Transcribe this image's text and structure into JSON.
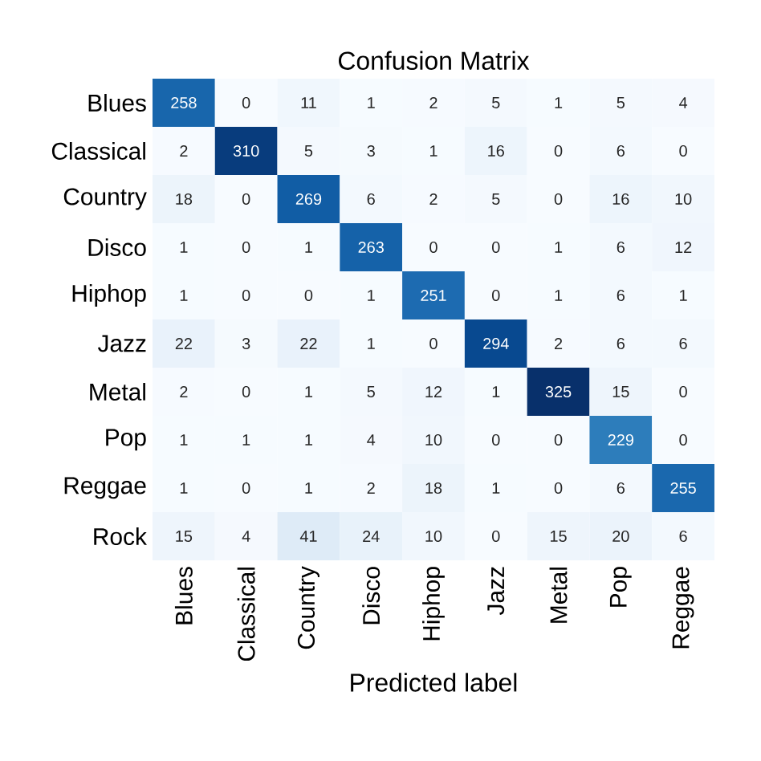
{
  "chart_data": {
    "type": "heatmap",
    "title": "Confusion Matrix",
    "xlabel": "Predicted label",
    "categories": [
      "Blues",
      "Classical",
      "Country",
      "Disco",
      "Hiphop",
      "Jazz",
      "Metal",
      "Pop",
      "Reggae"
    ],
    "y_categories": [
      "Blues",
      "Classical",
      "Country",
      "Disco",
      "Hiphop",
      "Jazz",
      "Metal",
      "Pop",
      "Reggae",
      "Rock"
    ],
    "cells": [
      [
        258,
        0,
        11,
        1,
        2,
        5,
        1,
        5,
        4
      ],
      [
        2,
        310,
        5,
        3,
        1,
        16,
        0,
        6,
        0
      ],
      [
        18,
        0,
        269,
        6,
        2,
        5,
        0,
        16,
        10
      ],
      [
        1,
        0,
        1,
        263,
        0,
        0,
        1,
        6,
        12
      ],
      [
        1,
        0,
        0,
        1,
        251,
        0,
        1,
        6,
        1
      ],
      [
        22,
        3,
        22,
        1,
        0,
        294,
        2,
        6,
        6
      ],
      [
        2,
        0,
        1,
        5,
        12,
        1,
        325,
        15,
        0
      ],
      [
        1,
        1,
        1,
        4,
        10,
        0,
        0,
        229,
        0
      ],
      [
        1,
        0,
        1,
        2,
        18,
        1,
        0,
        6,
        255
      ],
      [
        15,
        4,
        41,
        24,
        10,
        0,
        15,
        20,
        6
      ]
    ],
    "data_labels": true
  }
}
